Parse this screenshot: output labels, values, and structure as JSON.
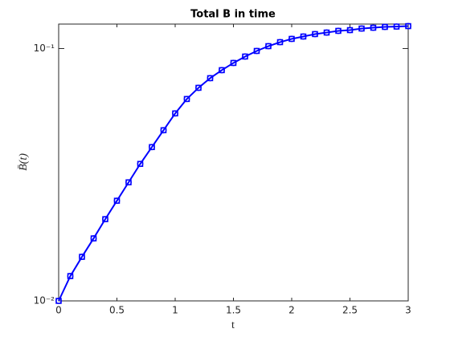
{
  "chart_data": {
    "type": "line",
    "title": "Total B in time",
    "xlabel": "t",
    "ylabel": "B̄(t)",
    "x": [
      0,
      0.1,
      0.2,
      0.3,
      0.4,
      0.5,
      0.6,
      0.7,
      0.8,
      0.9,
      1.0,
      1.1,
      1.2,
      1.3,
      1.4,
      1.5,
      1.6,
      1.7,
      1.8,
      1.9,
      2.0,
      2.1,
      2.2,
      2.3,
      2.4,
      2.5,
      2.6,
      2.7,
      2.8,
      2.9,
      3.0
    ],
    "series": [
      {
        "color": "#0000ff",
        "values": [
          0.01,
          0.01254,
          0.01495,
          0.01769,
          0.02108,
          0.02494,
          0.0295,
          0.0349,
          0.04069,
          0.04745,
          0.05533,
          0.0631,
          0.06988,
          0.0763,
          0.08209,
          0.08767,
          0.09296,
          0.09783,
          0.1022,
          0.106,
          0.1092,
          0.1116,
          0.1141,
          0.1157,
          0.1175,
          0.1183,
          0.12,
          0.1209,
          0.1218,
          0.1222,
          0.1227
        ]
      }
    ],
    "xlim": [
      0,
      3
    ],
    "xticks": [
      0,
      0.5,
      1,
      1.5,
      2,
      2.5,
      3
    ],
    "ylim": [
      0.01,
      0.125
    ],
    "ylog": true,
    "yticks": [
      {
        "value": 0.01,
        "label": "10⁻²"
      },
      {
        "value": 0.1,
        "label": "10⁻¹"
      }
    ],
    "grid": false
  }
}
